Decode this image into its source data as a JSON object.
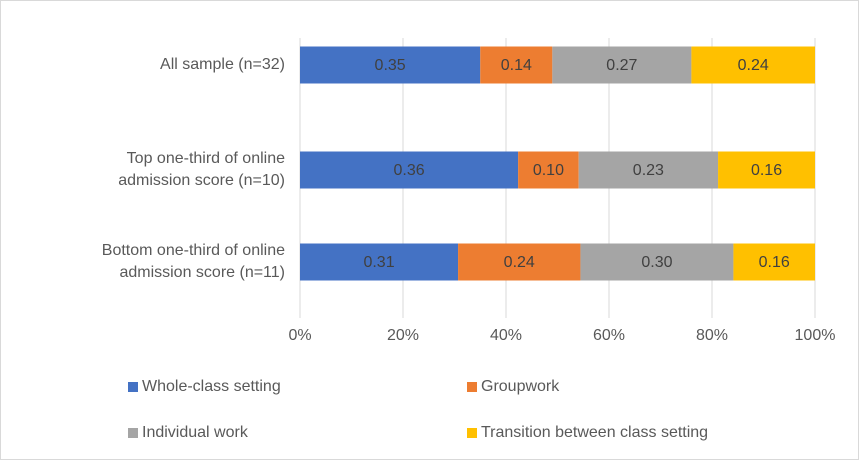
{
  "chart_data": {
    "type": "bar",
    "orientation": "horizontal",
    "stacking": "percent",
    "categories": [
      "All sample (n=32)",
      "Top one-third of online admission score (n=10)",
      "Bottom one-third of online admission score (n=11)"
    ],
    "series": [
      {
        "name": "Whole-class setting",
        "color": "#4472c4",
        "values": [
          0.35,
          0.36,
          0.31
        ],
        "value_labels": [
          "0.35",
          "0.36",
          "0.31"
        ]
      },
      {
        "name": "Groupwork",
        "color": "#ed7d31",
        "values": [
          0.14,
          0.1,
          0.24
        ],
        "value_labels": [
          "0.14",
          "0.10",
          "0.24"
        ]
      },
      {
        "name": "Individual work",
        "color": "#a5a5a5",
        "values": [
          0.27,
          0.23,
          0.3
        ],
        "value_labels": [
          "0.27",
          "0.23",
          "0.30"
        ]
      },
      {
        "name": "Transition between class setting",
        "color": "#ffc000",
        "values": [
          0.24,
          0.16,
          0.16
        ],
        "value_labels": [
          "0.24",
          "0.16",
          "0.16"
        ]
      }
    ],
    "xlim": [
      0,
      1
    ],
    "xticks": [
      {
        "value": 0,
        "label": "0%"
      },
      {
        "value": 0.2,
        "label": "20%"
      },
      {
        "value": 0.4,
        "label": "40%"
      },
      {
        "value": 0.6,
        "label": "60%"
      },
      {
        "value": 0.8,
        "label": "80%"
      },
      {
        "value": 1,
        "label": "100%"
      }
    ],
    "grid": true,
    "legend": "bottom"
  }
}
